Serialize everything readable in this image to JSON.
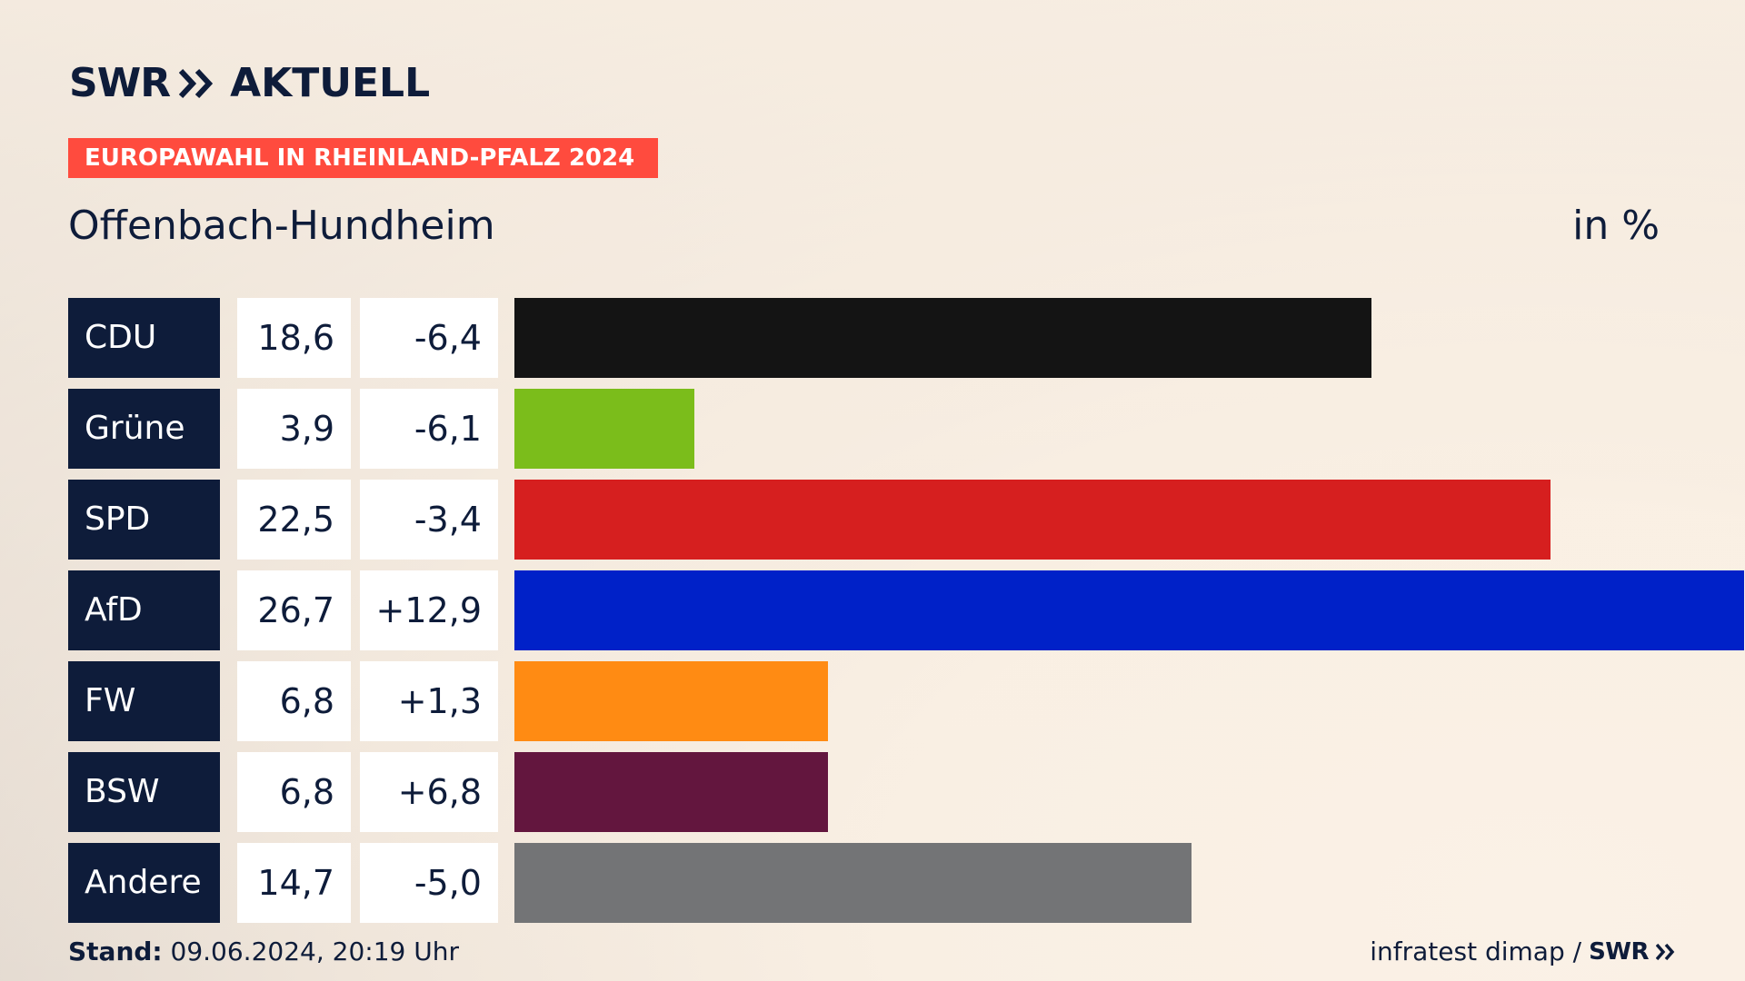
{
  "brand": {
    "logo_left": "SWR",
    "logo_right": "AKTUELL"
  },
  "banner": "EUROPAWAHL IN RHEINLAND-PFALZ 2024",
  "subtitle": "Offenbach-Hundheim",
  "unit": "in %",
  "chart_data": {
    "type": "bar",
    "orientation": "horizontal",
    "title": "",
    "xlabel": "",
    "ylabel": "",
    "xlim": [
      0,
      26.7
    ],
    "grid": false,
    "categories": [
      "CDU",
      "Grüne",
      "SPD",
      "AfD",
      "FW",
      "BSW",
      "Andere"
    ],
    "values": [
      18.6,
      3.9,
      22.5,
      26.7,
      6.8,
      6.8,
      14.7
    ],
    "value_labels": [
      "18,6",
      "3,9",
      "22,5",
      "26,7",
      "6,8",
      "6,8",
      "14,7"
    ],
    "diffs": [
      -6.4,
      -6.1,
      -3.4,
      12.9,
      1.3,
      6.8,
      -5.0
    ],
    "diff_labels": [
      "-6,4",
      "-6,1",
      "-3,4",
      "+12,9",
      "+1,3",
      "+6,8",
      "-5,0"
    ],
    "colors": [
      "#141414",
      "#7bbd1b",
      "#d61f1f",
      "#0021c8",
      "#ff8b13",
      "#63163e",
      "#737476"
    ]
  },
  "footer": {
    "stand_label": "Stand:",
    "stand_value": " 09.06.2024, 20:19 Uhr",
    "source": "infratest dimap /",
    "source_brand": "SWR"
  }
}
